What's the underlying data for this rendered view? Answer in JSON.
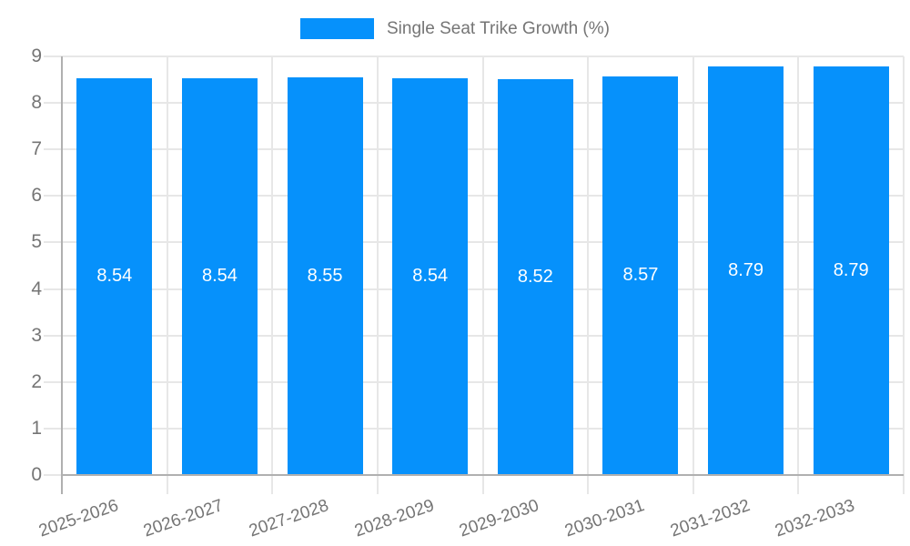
{
  "legend": {
    "label": "Single Seat Trike Growth (%)"
  },
  "colors": {
    "bar": "#0691FB",
    "grid": "#e7e7e7",
    "axis": "#b0b0b0",
    "tick_text": "#757575",
    "value_label": "#ffffff",
    "background": "#ffffff"
  },
  "chart_data": {
    "type": "bar",
    "title": "Single Seat Trike Growth (%)",
    "categories": [
      "2025-2026",
      "2026-2027",
      "2027-2028",
      "2028-2029",
      "2029-2030",
      "2030-2031",
      "2031-2032",
      "2032-2033"
    ],
    "series": [
      {
        "name": "Single Seat Trike Growth (%)",
        "values": [
          8.54,
          8.54,
          8.55,
          8.54,
          8.52,
          8.57,
          8.79,
          8.79
        ]
      }
    ],
    "value_labels": [
      "8.54",
      "8.54",
      "8.55",
      "8.54",
      "8.52",
      "8.57",
      "8.79",
      "8.79"
    ],
    "xlabel": "",
    "ylabel": "",
    "ylim": [
      0,
      9
    ],
    "yticks": [
      0,
      1,
      2,
      3,
      4,
      5,
      6,
      7,
      8,
      9
    ],
    "grid": true,
    "legend_position": "top",
    "bar_labels_inside": true,
    "x_label_rotation_deg": -19
  }
}
